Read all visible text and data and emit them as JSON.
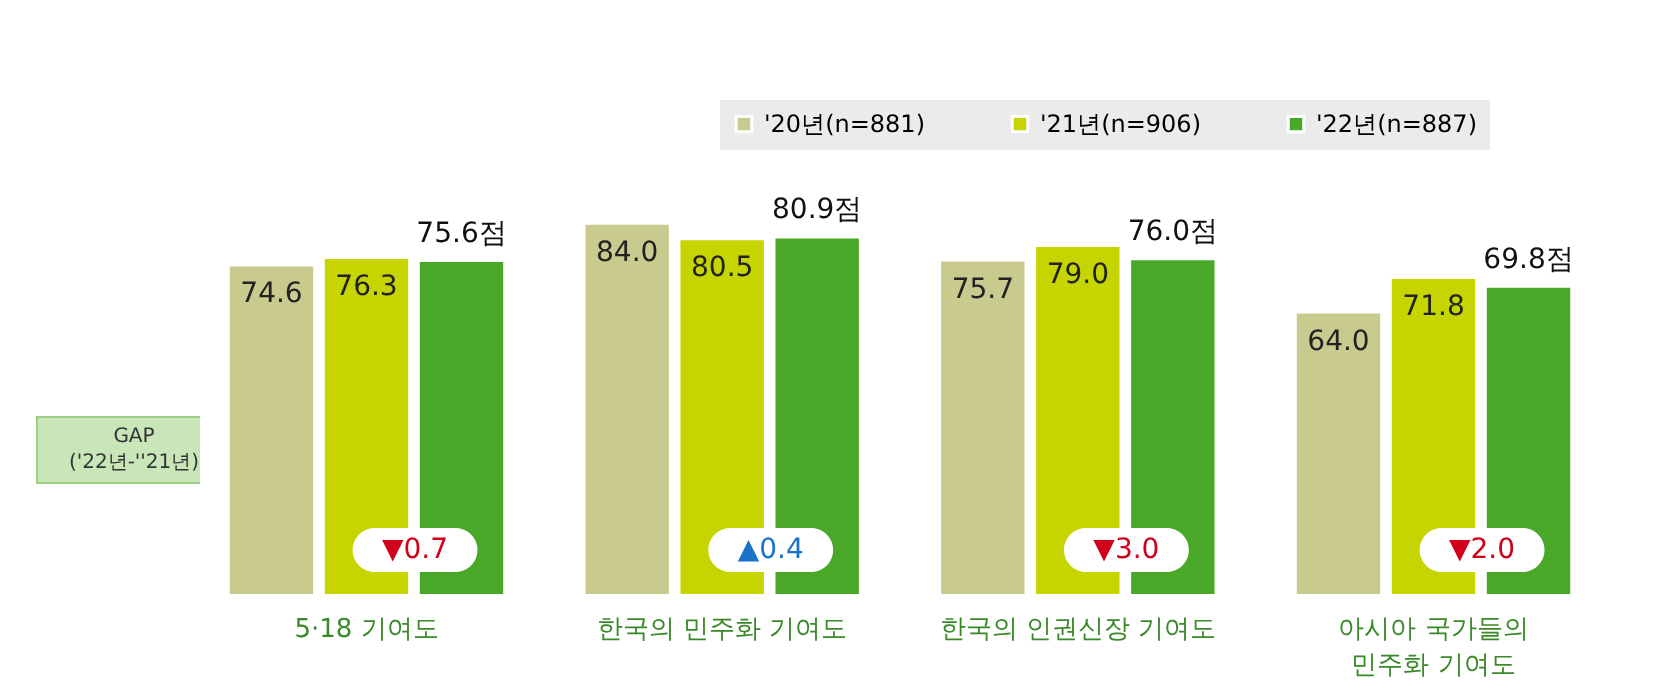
{
  "chart_data": {
    "type": "bar",
    "categories": [
      "5·18 기여도",
      "한국의 민주화 기여도",
      "한국의 인권신장 기여도",
      "아시아 국가들의\n민주화 기여도"
    ],
    "series": [
      {
        "name": "'20년(n=881)",
        "color": "#c9cb8e",
        "values": [
          74.6,
          84.0,
          75.7,
          64.0
        ],
        "value_labels": [
          "74.6",
          "84.0",
          "75.7",
          "64.0"
        ]
      },
      {
        "name": "'21년(n=906)",
        "color": "#c6d400",
        "values": [
          76.3,
          80.5,
          79.0,
          71.8
        ],
        "value_labels": [
          "76.3",
          "80.5",
          "79.0",
          "71.8"
        ]
      },
      {
        "name": "'22년(n=887)",
        "color": "#4aa829",
        "values": [
          75.6,
          80.9,
          76.0,
          69.8
        ],
        "value_labels": [
          "75.6점",
          "80.9점",
          "76.0점",
          "69.8점"
        ]
      }
    ],
    "legend": "top right",
    "annotations": [
      "GAP",
      "('22년-''21년)",
      "▼0.7",
      "▲0.4",
      "▼3.0",
      "▼2.0"
    ]
  }
}
